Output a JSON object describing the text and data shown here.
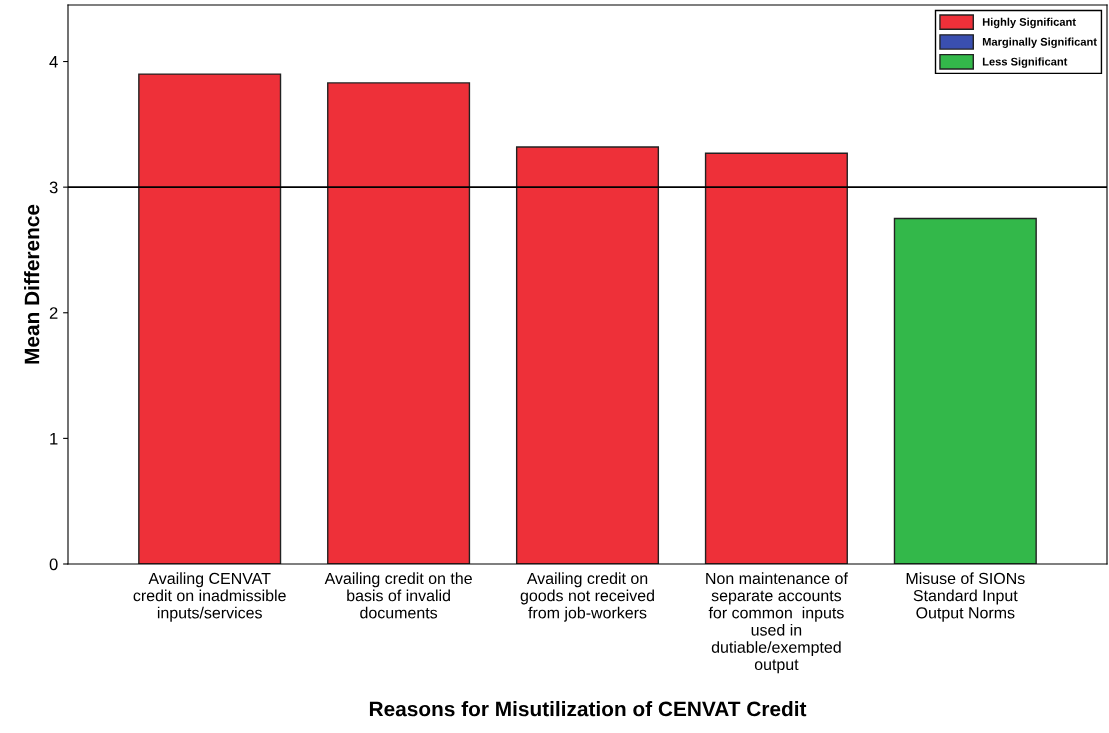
{
  "chart_data": {
    "type": "bar",
    "xlabel": "Reasons for Misutilization of CENVAT Credit",
    "ylabel": "Mean Difference",
    "categories": [
      "Availing CENVAT\ncredit on inadmissible\ninputs/services",
      "Availing credit on the\nbasis of invalid\ndocuments",
      "Availing credit on\ngoods not received\nfrom job-workers",
      "Non maintenance of\nseparate accounts\nfor common  inputs\nused in\ndutiable/exempted\noutput",
      "Misuse of SIONs\nStandard Input\nOutput Norms"
    ],
    "series": [
      {
        "name": "Highly Significant",
        "color": "#ee3039",
        "values": [
          3.9,
          3.83,
          3.32,
          3.27,
          null
        ]
      },
      {
        "name": "Marginally Significant",
        "color": "#3a4fb0",
        "values": [
          null,
          null,
          null,
          null,
          null
        ]
      },
      {
        "name": "Less Significant",
        "color": "#33b84a",
        "values": [
          null,
          null,
          null,
          null,
          2.75
        ]
      }
    ],
    "ylim": [
      0,
      4.45
    ],
    "yticks": [
      0,
      1,
      2,
      3,
      4
    ],
    "ref_lines": [
      {
        "axis": "y",
        "value": 3,
        "color": "#000000"
      }
    ],
    "grid": false,
    "legend": "top right"
  }
}
